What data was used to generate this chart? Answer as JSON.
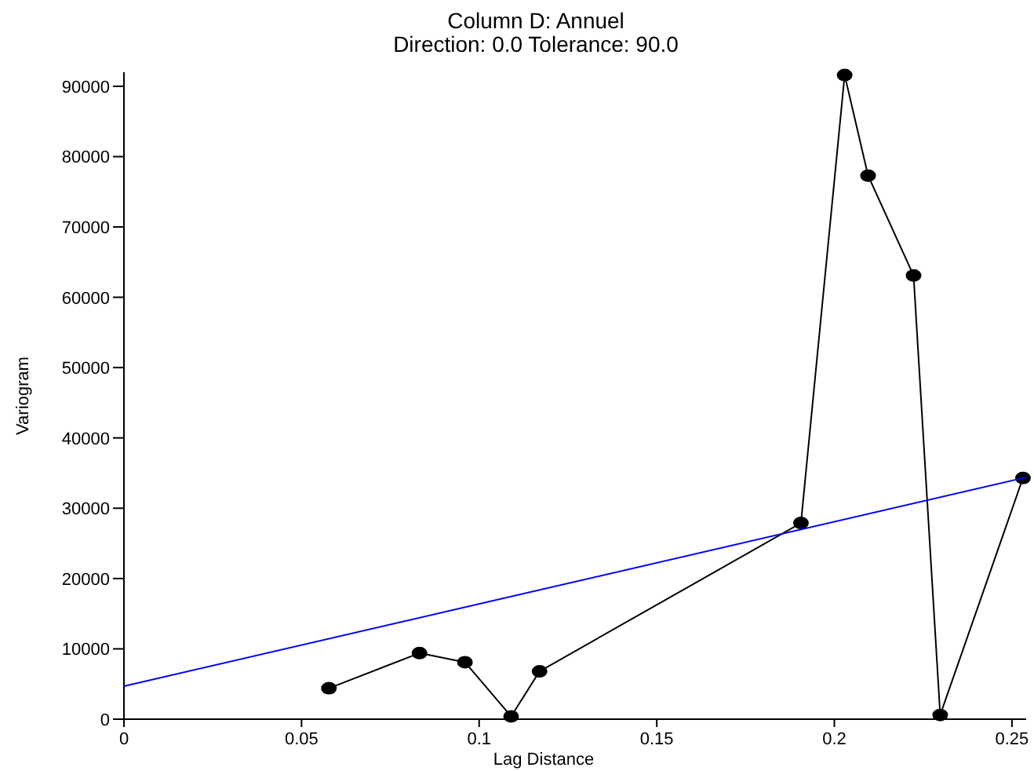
{
  "chart_data": {
    "type": "line",
    "title": "Column D:  Annuel",
    "subtitle": "Direction: 0.0   Tolerance: 90.0",
    "xlabel": "Lag Distance",
    "ylabel": "Variogram",
    "xlim": [
      0,
      0.254
    ],
    "ylim": [
      0,
      92000
    ],
    "xticks": [
      0,
      0.05,
      0.1,
      0.15,
      0.2,
      0.25
    ],
    "yticks": [
      0,
      10000,
      20000,
      30000,
      40000,
      50000,
      60000,
      70000,
      80000,
      90000
    ],
    "grid": false,
    "series": [
      {
        "color": "#000000",
        "marker": "circle",
        "x": [
          0.0577,
          0.0832,
          0.096,
          0.109,
          0.117,
          0.1906,
          0.2029,
          0.2095,
          0.2223,
          0.2298,
          0.2531
        ],
        "values": [
          4400,
          9400,
          8100,
          400,
          6800,
          27900,
          91600,
          77300,
          63100,
          600,
          34300
        ]
      },
      {
        "color": "#0000ff",
        "marker": "none",
        "x": [
          0,
          0.254
        ],
        "values": [
          4700,
          34400
        ]
      }
    ]
  }
}
